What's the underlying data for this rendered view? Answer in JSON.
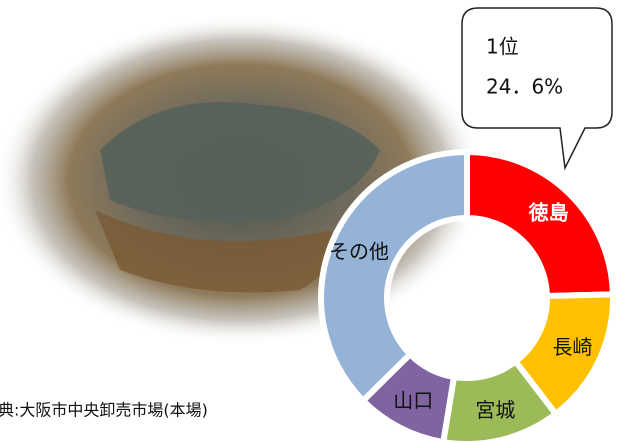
{
  "chart_data": {
    "type": "pie",
    "donut": true,
    "categories": [
      "徳島",
      "長崎",
      "宮城",
      "山口",
      "その他"
    ],
    "values": [
      24.6,
      15,
      13,
      10,
      37.4
    ],
    "value_labels": [
      "24．6%",
      null,
      null,
      null,
      null
    ],
    "colors": [
      "#ff0000",
      "#ffc000",
      "#9bbb59",
      "#8064a2",
      "#95b3d7"
    ],
    "annotation": "1位",
    "source": "典:大阪市中央卸売市場(本場)"
  }
}
